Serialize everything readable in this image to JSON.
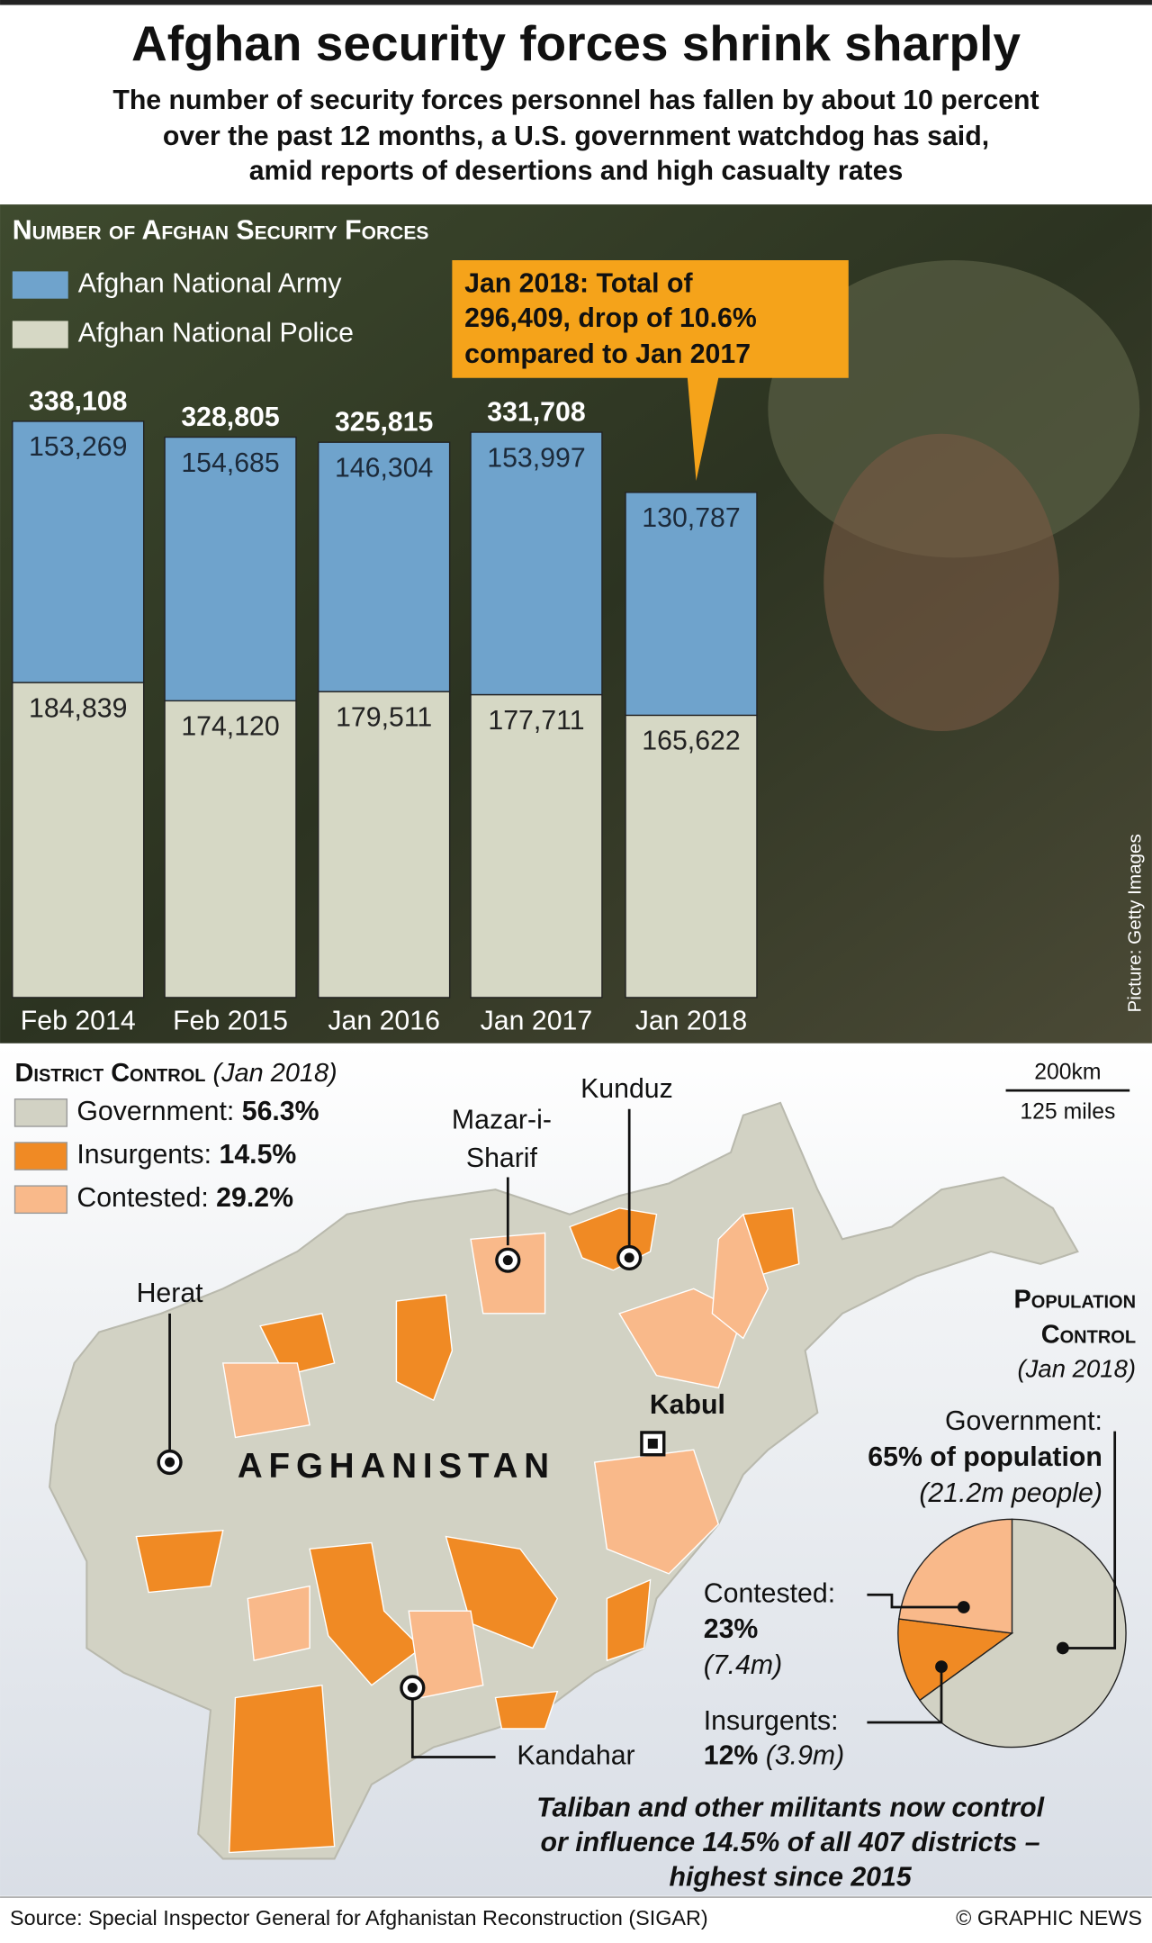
{
  "header": {
    "title": "Afghan security forces shrink sharply",
    "subtitle": [
      "The number of security forces personnel has fallen by about 10 percent",
      "over the past 12 months, a U.S. government watchdog has said,",
      "amid reports of desertions and high casualty rates"
    ]
  },
  "chart_data": [
    {
      "type": "bar",
      "stacked": true,
      "title": "Number of Afghan Security Forces",
      "categories": [
        "Feb 2014",
        "Feb 2015",
        "Jan 2016",
        "Jan 2017",
        "Jan 2018"
      ],
      "series": [
        {
          "name": "Afghan National Army",
          "color": "#6fa3cc",
          "values": [
            153269,
            154685,
            146304,
            153997,
            130787
          ],
          "value_labels": [
            "153,269",
            "154,685",
            "146,304",
            "153,997",
            "130,787"
          ]
        },
        {
          "name": "Afghan National Police",
          "color": "#d6d8c5",
          "values": [
            184839,
            174120,
            179511,
            177711,
            165622
          ],
          "value_labels": [
            "184,839",
            "174,120",
            "179,511",
            "177,711",
            "165,622"
          ]
        }
      ],
      "totals": [
        338108,
        328805,
        325815,
        331708
      ],
      "total_labels": [
        "338,108",
        "328,805",
        "325,815",
        "331,708"
      ],
      "annotation": [
        "Jan 2018: Total of",
        "296,409, drop of 10.6%",
        "compared to Jan 2017"
      ],
      "credit": "Picture: Getty Images"
    },
    {
      "type": "pie",
      "title": [
        "Population",
        "Control"
      ],
      "date": "(Jan 2018)",
      "categories": [
        "Government:",
        "Insurgents:",
        "Contested:"
      ],
      "values": [
        65,
        12,
        23
      ],
      "value_labels": [
        "65% of population",
        "12%",
        "23%"
      ],
      "detail_labels": [
        "(21.2m people)",
        "(3.9m)",
        "(7.4m)"
      ],
      "colors": [
        "#d2d2c4",
        "#f08a24",
        "#f9b98a"
      ]
    }
  ],
  "district_control": {
    "title": "District Control",
    "date": "(Jan 2018)",
    "items": [
      {
        "name": "Government:",
        "share": "56.3%",
        "color": "#d2d2c4"
      },
      {
        "name": "Insurgents:",
        "share": "14.5%",
        "color": "#f08a24"
      },
      {
        "name": "Contested:",
        "share": "29.2%",
        "color": "#f9b98a"
      }
    ]
  },
  "map": {
    "country": "AFGHANISTAN",
    "cities": [
      [
        "Kunduz"
      ],
      [
        "Mazar-i-",
        "Sharif"
      ],
      [
        "Herat"
      ],
      [
        "Kabul"
      ],
      [
        "Kandahar"
      ]
    ],
    "scale": [
      "200km",
      "125 miles"
    ]
  },
  "note": [
    "Taliban and other militants now control",
    "or influence 14.5% of all 407 districts –",
    "highest since 2015"
  ],
  "footer": {
    "source": "Source: Special Inspector General for Afghanistan Reconstruction (SIGAR)",
    "copyright": "© GRAPHIC NEWS"
  }
}
